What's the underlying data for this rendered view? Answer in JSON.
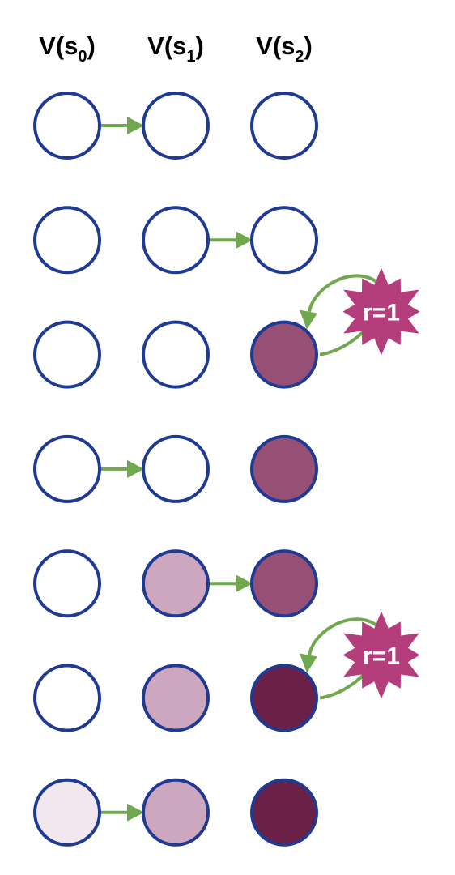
{
  "headers": [
    {
      "main": "V(s",
      "sub": "0",
      "close": ")"
    },
    {
      "main": "V(s",
      "sub": "1",
      "close": ")"
    },
    {
      "main": "V(s",
      "sub": "2",
      "close": ")"
    }
  ],
  "palette": {
    "empty": "#ffffff",
    "faint": "#f2e6ef",
    "light": "#cda7c0",
    "medium": "#975075",
    "dark": "#6b2048",
    "stroke": "#1f3a93",
    "arrow": "#6fa84d",
    "burst": "#b43d7c"
  },
  "rows": [
    {
      "cells": [
        "empty",
        "empty",
        "empty"
      ],
      "arrow_from": 0,
      "reward": null
    },
    {
      "cells": [
        "empty",
        "empty",
        "empty"
      ],
      "arrow_from": 1,
      "reward": null
    },
    {
      "cells": [
        "empty",
        "empty",
        "medium"
      ],
      "arrow_from": null,
      "reward": "r=1"
    },
    {
      "cells": [
        "empty",
        "empty",
        "medium"
      ],
      "arrow_from": 0,
      "reward": null
    },
    {
      "cells": [
        "empty",
        "light",
        "medium"
      ],
      "arrow_from": 1,
      "reward": null
    },
    {
      "cells": [
        "empty",
        "light",
        "dark"
      ],
      "arrow_from": null,
      "reward": "r=1"
    },
    {
      "cells": [
        "faint",
        "light",
        "dark"
      ],
      "arrow_from": 0,
      "reward": null
    }
  ]
}
